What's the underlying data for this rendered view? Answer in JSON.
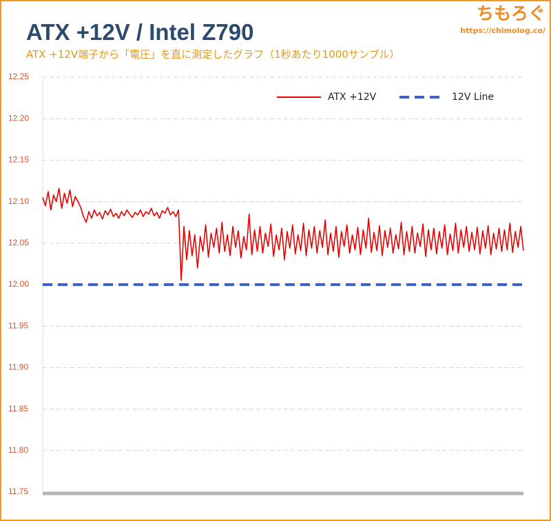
{
  "chart_data": {
    "type": "line",
    "title": "ATX +12V / Intel Z790",
    "subtitle": "ATX +12V端子から「電圧」を直に測定したグラフ（1秒あたり1000サンプル）",
    "watermark": {
      "logo": "ちもろぐ",
      "url": "https://chimolog.co/"
    },
    "ylim": [
      11.75,
      12.25
    ],
    "yticks": [
      11.75,
      {
        "value": 11.8,
        "label": "11.80"
      },
      11.85,
      {
        "value": 11.9,
        "label": "11.90"
      },
      11.95,
      {
        "value": 12,
        "label": "12.00"
      },
      12.05,
      {
        "value": 12.1,
        "label": "12.10"
      },
      12.15,
      {
        "value": 12.2,
        "label": "12.20"
      },
      12.25
    ],
    "grid": true,
    "legend": "top-right",
    "series": [
      {
        "name": "ATX +12V",
        "color": "#e60000",
        "values": [
          12.105,
          12.095,
          12.112,
          12.09,
          12.108,
          12.1,
          12.116,
          12.092,
          12.11,
          12.098,
          12.114,
          12.094,
          12.106,
          12.1,
          12.093,
          12.082,
          12.075,
          12.088,
          12.08,
          12.09,
          12.083,
          12.087,
          12.079,
          12.089,
          12.084,
          12.091,
          12.082,
          12.086,
          12.08,
          12.088,
          12.083,
          12.09,
          12.085,
          12.081,
          12.087,
          12.084,
          12.09,
          12.082,
          12.088,
          12.085,
          12.092,
          12.083,
          12.087,
          12.08,
          12.089,
          12.086,
          12.093,
          12.084,
          12.088,
          12.082,
          12.09,
          12.005,
          12.07,
          12.03,
          12.065,
          12.035,
          12.06,
          12.02,
          12.058,
          12.04,
          12.072,
          12.033,
          12.062,
          12.045,
          12.068,
          12.038,
          12.075,
          12.04,
          12.06,
          12.035,
          12.07,
          12.045,
          12.065,
          12.032,
          12.058,
          12.042,
          12.085,
          12.036,
          12.066,
          12.04,
          12.07,
          12.038,
          12.062,
          12.046,
          12.073,
          12.034,
          12.06,
          12.042,
          12.068,
          12.03,
          12.064,
          12.044,
          12.072,
          12.037,
          12.06,
          12.041,
          12.074,
          12.035,
          12.066,
          12.044,
          12.07,
          12.038,
          12.065,
          12.045,
          12.078,
          12.036,
          12.062,
          12.04,
          12.07,
          12.033,
          12.064,
          12.046,
          12.072,
          12.038,
          12.06,
          12.042,
          12.069,
          12.036,
          12.066,
          12.044,
          12.08,
          12.039,
          12.063,
          12.041,
          12.071,
          12.035,
          12.065,
          12.045,
          12.068,
          12.038,
          12.06,
          12.043,
          12.075,
          12.036,
          12.064,
          12.04,
          12.07,
          12.038,
          12.062,
          12.046,
          12.073,
          12.034,
          12.066,
          12.042,
          12.068,
          12.037,
          12.064,
          12.044,
          12.072,
          12.036,
          12.061,
          12.041,
          12.074,
          12.038,
          12.066,
          12.045,
          12.07,
          12.04,
          12.063,
          12.042,
          12.069,
          12.037,
          12.065,
          12.044,
          12.071,
          12.036,
          12.062,
          12.043,
          12.068,
          12.04,
          12.066,
          12.042,
          12.074,
          12.039,
          12.064,
          12.045,
          12.07,
          12.041
        ]
      }
    ],
    "reference_line": {
      "name": "12V Line",
      "value": 12,
      "color": "#3a62d8",
      "dashed": true
    }
  }
}
